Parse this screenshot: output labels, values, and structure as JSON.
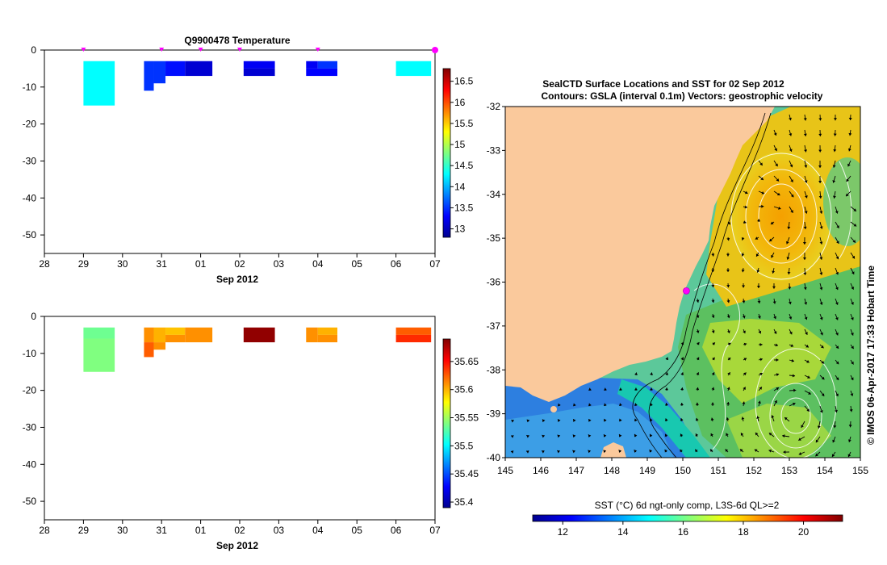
{
  "profile_panels": [
    {
      "id": "temperature",
      "title": "Q9900478  Temperature",
      "xlabel": "Sep 2012",
      "ylim": [
        -55,
        0
      ],
      "yticks": [
        0,
        -10,
        -20,
        -30,
        -40,
        -50
      ],
      "xlim": [
        28,
        38
      ],
      "xticks": [
        28,
        29,
        30,
        31,
        32,
        33,
        34,
        35,
        36,
        37,
        38
      ],
      "xticklabels": [
        "28",
        "29",
        "30",
        "31",
        "01",
        "02",
        "03",
        "04",
        "05",
        "06",
        "07"
      ],
      "surface_marks": [
        29,
        31,
        32,
        33,
        35,
        38
      ],
      "last_mark": 38,
      "colorbar": {
        "min": 12.8,
        "max": 16.8,
        "ticks": [
          13,
          13.5,
          14,
          14.5,
          15,
          15.5,
          16,
          16.5
        ],
        "ticklabels": [
          "13",
          "13.5",
          "14",
          "14.5",
          "15",
          "15.5",
          "16",
          "16.5"
        ]
      },
      "cells": [
        {
          "x0": 29.0,
          "x1": 29.8,
          "d0": 3,
          "d1": 15,
          "v": 14.3
        },
        {
          "x0": 30.55,
          "x1": 30.8,
          "d0": 3,
          "d1": 11,
          "v": 13.5
        },
        {
          "x0": 30.8,
          "x1": 31.1,
          "d0": 3,
          "d1": 9,
          "v": 13.5
        },
        {
          "x0": 31.1,
          "x1": 31.6,
          "d0": 3,
          "d1": 7,
          "v": 13.35
        },
        {
          "x0": 31.6,
          "x1": 32.3,
          "d0": 3,
          "d1": 7,
          "v": 13.1
        },
        {
          "x0": 33.1,
          "x1": 33.9,
          "d0": 3,
          "d1": 5,
          "v": 13.25
        },
        {
          "x0": 33.1,
          "x1": 33.9,
          "d0": 5,
          "d1": 7,
          "v": 13.1
        },
        {
          "x0": 34.7,
          "x1": 35.0,
          "d0": 3,
          "d1": 5,
          "v": 13.25
        },
        {
          "x0": 35.0,
          "x1": 35.5,
          "d0": 3,
          "d1": 5,
          "v": 13.5
        },
        {
          "x0": 34.7,
          "x1": 35.5,
          "d0": 5,
          "d1": 7,
          "v": 13.3
        },
        {
          "x0": 37.0,
          "x1": 37.9,
          "d0": 3,
          "d1": 7,
          "v": 14.3
        }
      ]
    },
    {
      "id": "salinity",
      "title": "",
      "xlabel": "Sep 2012",
      "ylim": [
        -55,
        0
      ],
      "yticks": [
        0,
        -10,
        -20,
        -30,
        -40,
        -50
      ],
      "xlim": [
        28,
        38
      ],
      "xticks": [
        28,
        29,
        30,
        31,
        32,
        33,
        34,
        35,
        36,
        37,
        38
      ],
      "xticklabels": [
        "28",
        "29",
        "30",
        "31",
        "01",
        "02",
        "03",
        "04",
        "05",
        "06",
        "07"
      ],
      "surface_marks": [],
      "last_mark": null,
      "colorbar": {
        "min": 35.39,
        "max": 35.69,
        "ticks": [
          35.4,
          35.45,
          35.5,
          35.55,
          35.6,
          35.65
        ],
        "ticklabels": [
          "35.4",
          "35.45",
          "35.5",
          "35.55",
          "35.6",
          "35.65"
        ]
      },
      "cells": [
        {
          "x0": 29.0,
          "x1": 29.8,
          "d0": 3,
          "d1": 6,
          "v": 35.535
        },
        {
          "x0": 29.0,
          "x1": 29.8,
          "d0": 6,
          "d1": 15,
          "v": 35.54
        },
        {
          "x0": 30.55,
          "x1": 30.8,
          "d0": 3,
          "d1": 7,
          "v": 35.61
        },
        {
          "x0": 30.55,
          "x1": 30.8,
          "d0": 7,
          "d1": 11,
          "v": 35.625
        },
        {
          "x0": 30.8,
          "x1": 31.1,
          "d0": 3,
          "d1": 7,
          "v": 35.6
        },
        {
          "x0": 30.8,
          "x1": 31.1,
          "d0": 7,
          "d1": 9,
          "v": 35.61
        },
        {
          "x0": 31.1,
          "x1": 31.6,
          "d0": 3,
          "d1": 5,
          "v": 35.595
        },
        {
          "x0": 31.1,
          "x1": 31.6,
          "d0": 5,
          "d1": 7,
          "v": 35.61
        },
        {
          "x0": 31.6,
          "x1": 32.3,
          "d0": 3,
          "d1": 7,
          "v": 35.61
        },
        {
          "x0": 33.1,
          "x1": 33.9,
          "d0": 3,
          "d1": 7,
          "v": 35.685
        },
        {
          "x0": 34.7,
          "x1": 35.0,
          "d0": 3,
          "d1": 7,
          "v": 35.61
        },
        {
          "x0": 35.0,
          "x1": 35.5,
          "d0": 3,
          "d1": 5,
          "v": 35.6
        },
        {
          "x0": 35.0,
          "x1": 35.5,
          "d0": 5,
          "d1": 7,
          "v": 35.61
        },
        {
          "x0": 37.0,
          "x1": 37.9,
          "d0": 3,
          "d1": 5,
          "v": 35.625
        },
        {
          "x0": 37.0,
          "x1": 37.9,
          "d0": 5,
          "d1": 7,
          "v": 35.64
        }
      ]
    }
  ],
  "map_panel": {
    "title_line1": "SealCTD Surface Locations and SST for 02 Sep 2012",
    "title_line2": "Contours: GSLA (interval 0.1m) Vectors: geostrophic velocity",
    "lon_range": [
      145,
      155
    ],
    "lat_range": [
      -40,
      -32
    ],
    "lon_ticks": [
      145,
      146,
      147,
      148,
      149,
      150,
      151,
      152,
      153,
      154,
      155
    ],
    "lat_ticks": [
      -32,
      -33,
      -34,
      -35,
      -36,
      -37,
      -38,
      -39,
      -40
    ],
    "seal_location": {
      "lon": 150.1,
      "lat": -36.2
    },
    "colorbar_title": "SST (°C) 6d ngt-only comp, L3S-6d QL>=2",
    "colorbar": {
      "min": 11,
      "max": 21.3,
      "ticks": [
        12,
        14,
        16,
        18,
        20
      ],
      "ticklabels": [
        "12",
        "14",
        "16",
        "18",
        "20"
      ]
    },
    "credit": "© IMOS 06-Apr-2017 17:33 Hobart Time",
    "colors": {
      "land": "#fac99c",
      "deep_water": "#1e6ee0",
      "shelf_water": "#16c8a0",
      "warm_core": "#f0b40a",
      "mixed": "#8cd250",
      "marker": "#ff00ff"
    }
  },
  "chart_data": [
    {
      "type": "heatmap",
      "title": "Q9900478  Temperature",
      "xlabel": "Sep 2012",
      "ylabel": "",
      "x_ticklabels": [
        "28",
        "29",
        "30",
        "31",
        "01",
        "02",
        "03",
        "04",
        "05",
        "06",
        "07"
      ],
      "ylim": [
        -55,
        0
      ],
      "colorbar_range": [
        12.8,
        16.8
      ],
      "series": [
        {
          "name": "29",
          "depth_range": [
            -3,
            -15
          ],
          "value": 14.3
        },
        {
          "name": "31 (a)",
          "depth_range": [
            -3,
            -11
          ],
          "value": 13.5
        },
        {
          "name": "31 (b)",
          "depth_range": [
            -3,
            -7
          ],
          "value": 13.35
        },
        {
          "name": "01",
          "depth_range": [
            -3,
            -7
          ],
          "value": 13.1
        },
        {
          "name": "02",
          "depth_range": [
            -3,
            -7
          ],
          "value": 13.15
        },
        {
          "name": "04",
          "depth_range": [
            -3,
            -7
          ],
          "value": 13.35
        },
        {
          "name": "06",
          "depth_range": [
            -3,
            -7
          ],
          "value": 14.3
        }
      ]
    },
    {
      "type": "heatmap",
      "title": "",
      "xlabel": "Sep 2012",
      "ylabel": "",
      "x_ticklabels": [
        "28",
        "29",
        "30",
        "31",
        "01",
        "02",
        "03",
        "04",
        "05",
        "06",
        "07"
      ],
      "ylim": [
        -55,
        0
      ],
      "colorbar_range": [
        35.39,
        35.69
      ],
      "series": [
        {
          "name": "29",
          "depth_range": [
            -3,
            -15
          ],
          "value": 35.54
        },
        {
          "name": "31 (a)",
          "depth_range": [
            -3,
            -11
          ],
          "value": 35.61
        },
        {
          "name": "31 (b)",
          "depth_range": [
            -3,
            -7
          ],
          "value": 35.6
        },
        {
          "name": "01",
          "depth_range": [
            -3,
            -7
          ],
          "value": 35.61
        },
        {
          "name": "02",
          "depth_range": [
            -3,
            -7
          ],
          "value": 35.685
        },
        {
          "name": "04",
          "depth_range": [
            -3,
            -7
          ],
          "value": 35.61
        },
        {
          "name": "06",
          "depth_range": [
            -3,
            -7
          ],
          "value": 35.63
        }
      ]
    },
    {
      "type": "heatmap",
      "title": "SealCTD Surface Locations and SST for 02 Sep 2012",
      "xlabel": "",
      "ylabel": "",
      "xlim": [
        145,
        155
      ],
      "ylim": [
        -40,
        -32
      ],
      "colorbar_title": "SST (°C) 6d ngt-only comp, L3S-6d QL>=2",
      "colorbar_range": [
        11,
        21.3
      ],
      "annotations": [
        "Contours: GSLA (interval 0.1m) Vectors: geostrophic velocity"
      ]
    }
  ]
}
